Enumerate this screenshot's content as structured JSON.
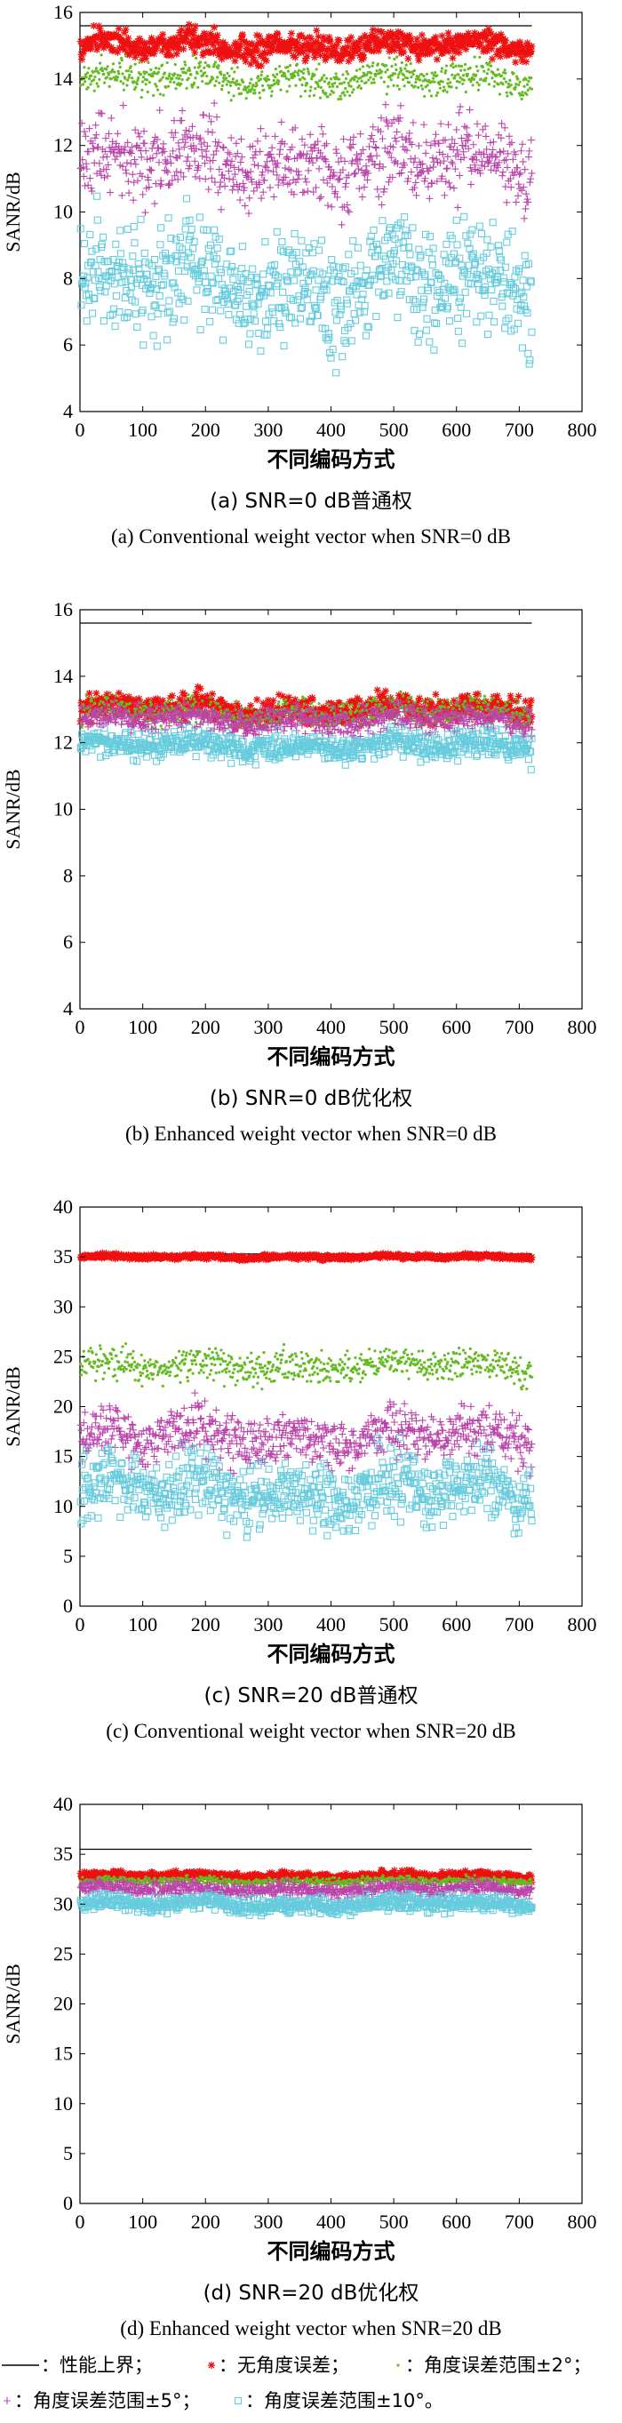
{
  "chart_data": [
    {
      "type": "scatter",
      "panel": "a",
      "caption_cn": "(a) SNR=0 dB普通权",
      "caption_en": "(a) Conventional weight vector when SNR=0 dB",
      "xlabel": "不同编码方式",
      "ylabel": "SANR/dB",
      "xlim": [
        0,
        800
      ],
      "ylim": [
        4,
        16
      ],
      "xticks": [
        "0",
        "100",
        "200",
        "300",
        "400",
        "500",
        "600",
        "700",
        "800"
      ],
      "yticks": [
        "4",
        "6",
        "8",
        "10",
        "12",
        "14",
        "16"
      ],
      "grid": false,
      "n_points": 720,
      "series": [
        {
          "key": "upper",
          "type": "line",
          "value": 15.6,
          "spread": 0,
          "color": "#000000"
        },
        {
          "key": "none",
          "marker": "star",
          "mean": 15.0,
          "spread": 0.3,
          "color": "#ee1111"
        },
        {
          "key": "err2",
          "marker": "dot",
          "mean": 14.0,
          "spread": 0.35,
          "color": "#66bb22"
        },
        {
          "key": "err5",
          "marker": "plus",
          "mean": 11.5,
          "spread": 0.9,
          "color": "#bb44aa"
        },
        {
          "key": "err10",
          "marker": "square",
          "mean": 7.8,
          "spread": 1.2,
          "color": "#66ccdd"
        }
      ]
    },
    {
      "type": "scatter",
      "panel": "b",
      "caption_cn": "(b) SNR=0 dB优化权",
      "caption_en": "(b) Enhanced weight vector when SNR=0 dB",
      "xlabel": "不同编码方式",
      "ylabel": "SANR/dB",
      "xlim": [
        0,
        800
      ],
      "ylim": [
        4,
        16
      ],
      "xticks": [
        "0",
        "100",
        "200",
        "300",
        "400",
        "500",
        "600",
        "700",
        "800"
      ],
      "yticks": [
        "4",
        "6",
        "8",
        "10",
        "12",
        "14",
        "16"
      ],
      "grid": false,
      "n_points": 720,
      "series": [
        {
          "key": "upper",
          "type": "line",
          "value": 15.6,
          "spread": 0,
          "color": "#000000"
        },
        {
          "key": "none",
          "marker": "star",
          "mean": 13.0,
          "spread": 0.3,
          "color": "#ee1111"
        },
        {
          "key": "err2",
          "marker": "dot",
          "mean": 12.9,
          "spread": 0.3,
          "color": "#66bb22"
        },
        {
          "key": "err5",
          "marker": "plus",
          "mean": 12.7,
          "spread": 0.3,
          "color": "#bb44aa"
        },
        {
          "key": "err10",
          "marker": "square",
          "mean": 11.9,
          "spread": 0.3,
          "color": "#66ccdd"
        }
      ]
    },
    {
      "type": "scatter",
      "panel": "c",
      "caption_cn": "(c) SNR=20 dB普通权",
      "caption_en": "(c) Conventional weight vector when SNR=20 dB",
      "xlabel": "不同编码方式",
      "ylabel": "SANR/dB",
      "xlim": [
        0,
        800
      ],
      "ylim": [
        0,
        40
      ],
      "xticks": [
        "0",
        "100",
        "200",
        "300",
        "400",
        "500",
        "600",
        "700",
        "800"
      ],
      "yticks": [
        "0",
        "5",
        "10",
        "15",
        "20",
        "25",
        "30",
        "35",
        "40"
      ],
      "grid": false,
      "n_points": 720,
      "series": [
        {
          "key": "upper",
          "type": "line",
          "value": 35.3,
          "spread": 0,
          "color": "#000000"
        },
        {
          "key": "none",
          "marker": "star",
          "mean": 35.0,
          "spread": 0.2,
          "color": "#ee1111"
        },
        {
          "key": "err2",
          "marker": "dot",
          "mean": 24.0,
          "spread": 1.2,
          "color": "#66bb22"
        },
        {
          "key": "err5",
          "marker": "plus",
          "mean": 17.0,
          "spread": 2.0,
          "color": "#bb44aa"
        },
        {
          "key": "err10",
          "marker": "square",
          "mean": 11.5,
          "spread": 2.5,
          "color": "#66ccdd"
        }
      ]
    },
    {
      "type": "scatter",
      "panel": "d",
      "caption_cn": "(d) SNR=20 dB优化权",
      "caption_en": "(d) Enhanced weight vector when SNR=20 dB",
      "xlabel": "不同编码方式",
      "ylabel": "SANR/dB",
      "xlim": [
        0,
        800
      ],
      "ylim": [
        0,
        40
      ],
      "xticks": [
        "0",
        "100",
        "200",
        "300",
        "400",
        "500",
        "600",
        "700",
        "800"
      ],
      "yticks": [
        "0",
        "5",
        "10",
        "15",
        "20",
        "25",
        "30",
        "35",
        "40"
      ],
      "grid": false,
      "n_points": 720,
      "series": [
        {
          "key": "upper",
          "type": "line",
          "value": 35.5,
          "spread": 0,
          "color": "#000000"
        },
        {
          "key": "none",
          "marker": "star",
          "mean": 32.8,
          "spread": 0.3,
          "color": "#ee1111"
        },
        {
          "key": "err2",
          "marker": "dot",
          "mean": 32.3,
          "spread": 0.3,
          "color": "#66bb22"
        },
        {
          "key": "err5",
          "marker": "plus",
          "mean": 31.5,
          "spread": 0.5,
          "color": "#bb44aa"
        },
        {
          "key": "err10",
          "marker": "square",
          "mean": 30.0,
          "spread": 0.6,
          "color": "#66ccdd"
        }
      ]
    }
  ],
  "legend": {
    "upper": "：性能上界；",
    "none": "：无角度误差；",
    "err2": "：角度误差范围±2°；",
    "err5": "：角度误差范围±5°；",
    "err10": "：角度误差范围±10°。"
  }
}
